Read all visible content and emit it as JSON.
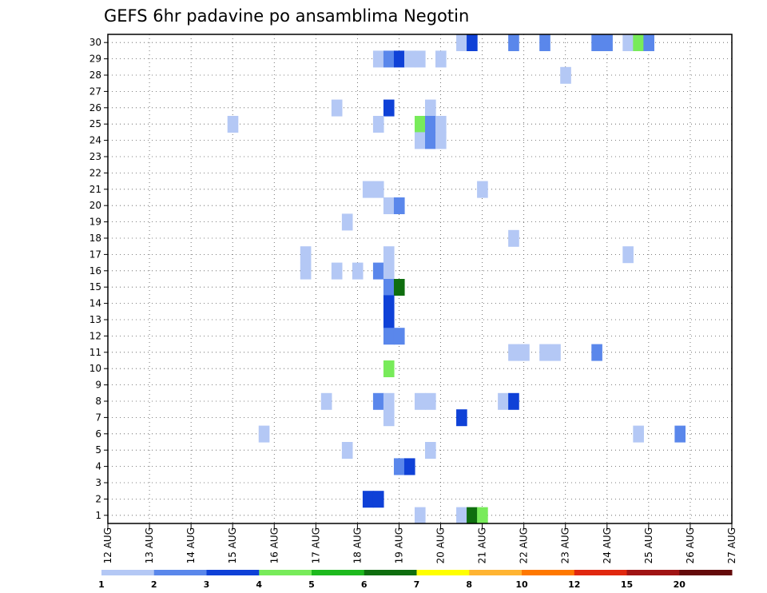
{
  "chart_data": {
    "type": "heatmap",
    "title": "GEFS 6hr padavine po ansamblima Negotin",
    "xlabel": "",
    "ylabel": "",
    "y_ticks": [
      1,
      2,
      3,
      4,
      5,
      6,
      7,
      8,
      9,
      10,
      11,
      12,
      13,
      14,
      15,
      16,
      17,
      18,
      19,
      20,
      21,
      22,
      23,
      24,
      25,
      26,
      27,
      28,
      29,
      30
    ],
    "x_ticks": [
      "12 AUG",
      "13 AUG",
      "14 AUG",
      "15 AUG",
      "16 AUG",
      "17 AUG",
      "18 AUG",
      "19 AUG",
      "20 AUG",
      "21 AUG",
      "22 AUG",
      "23 AUG",
      "24 AUG",
      "25 AUG",
      "26 AUG",
      "27 AUG"
    ],
    "x_range_days": [
      12,
      27
    ],
    "y_range": [
      0.5,
      30.5
    ],
    "step_hours": 6,
    "grid": true,
    "colorbar": {
      "labels": [
        "1",
        "2",
        "3",
        "4",
        "5",
        "6",
        "7",
        "8",
        "10",
        "12",
        "15",
        "20"
      ],
      "colors": [
        "#b4c8f5",
        "#5a87eb",
        "#0f41d7",
        "#78eb5a",
        "#1eb91e",
        "#0f6e0f",
        "#ffff00",
        "#ffb432",
        "#ff7800",
        "#e1280f",
        "#a01414",
        "#640a0a"
      ]
    },
    "cells": [
      {
        "day": 20.5,
        "member": 30,
        "level": 1
      },
      {
        "day": 20.75,
        "member": 30,
        "level": 3
      },
      {
        "day": 21.75,
        "member": 30,
        "level": 2
      },
      {
        "day": 22.5,
        "member": 30,
        "level": 2
      },
      {
        "day": 23.75,
        "member": 30,
        "level": 2
      },
      {
        "day": 24.0,
        "member": 30,
        "level": 2
      },
      {
        "day": 24.5,
        "member": 30,
        "level": 1
      },
      {
        "day": 24.75,
        "member": 30,
        "level": 4
      },
      {
        "day": 25.0,
        "member": 30,
        "level": 2
      },
      {
        "day": 18.5,
        "member": 29,
        "level": 1
      },
      {
        "day": 18.75,
        "member": 29,
        "level": 2
      },
      {
        "day": 19.0,
        "member": 29,
        "level": 3
      },
      {
        "day": 19.25,
        "member": 29,
        "level": 1
      },
      {
        "day": 19.5,
        "member": 29,
        "level": 1
      },
      {
        "day": 20.0,
        "member": 29,
        "level": 1
      },
      {
        "day": 23.0,
        "member": 28,
        "level": 1
      },
      {
        "day": 17.5,
        "member": 26,
        "level": 1
      },
      {
        "day": 18.75,
        "member": 26,
        "level": 3
      },
      {
        "day": 19.75,
        "member": 26,
        "level": 1
      },
      {
        "day": 15.0,
        "member": 25,
        "level": 1
      },
      {
        "day": 18.5,
        "member": 25,
        "level": 1
      },
      {
        "day": 19.5,
        "member": 25,
        "level": 4
      },
      {
        "day": 19.75,
        "member": 25,
        "level": 2
      },
      {
        "day": 20.0,
        "member": 25,
        "level": 1
      },
      {
        "day": 19.5,
        "member": 24,
        "level": 1
      },
      {
        "day": 19.75,
        "member": 24,
        "level": 2
      },
      {
        "day": 20.0,
        "member": 24,
        "level": 1
      },
      {
        "day": 18.25,
        "member": 21,
        "level": 1
      },
      {
        "day": 18.5,
        "member": 21,
        "level": 1
      },
      {
        "day": 21.0,
        "member": 21,
        "level": 1
      },
      {
        "day": 18.75,
        "member": 20,
        "level": 1
      },
      {
        "day": 19.0,
        "member": 20,
        "level": 2
      },
      {
        "day": 17.75,
        "member": 19,
        "level": 1
      },
      {
        "day": 21.75,
        "member": 18,
        "level": 1
      },
      {
        "day": 16.75,
        "member": 17,
        "level": 1
      },
      {
        "day": 18.75,
        "member": 17,
        "level": 1
      },
      {
        "day": 24.5,
        "member": 17,
        "level": 1
      },
      {
        "day": 16.75,
        "member": 16,
        "level": 1
      },
      {
        "day": 17.5,
        "member": 16,
        "level": 1
      },
      {
        "day": 18.0,
        "member": 16,
        "level": 1
      },
      {
        "day": 18.5,
        "member": 16,
        "level": 2
      },
      {
        "day": 18.75,
        "member": 16,
        "level": 1
      },
      {
        "day": 18.75,
        "member": 15,
        "level": 2
      },
      {
        "day": 19.0,
        "member": 15,
        "level": 6
      },
      {
        "day": 18.75,
        "member": 14,
        "level": 3
      },
      {
        "day": 18.75,
        "member": 13,
        "level": 3
      },
      {
        "day": 18.75,
        "member": 12,
        "level": 2
      },
      {
        "day": 19.0,
        "member": 12,
        "level": 2
      },
      {
        "day": 21.75,
        "member": 11,
        "level": 1
      },
      {
        "day": 22.0,
        "member": 11,
        "level": 1
      },
      {
        "day": 22.5,
        "member": 11,
        "level": 1
      },
      {
        "day": 22.75,
        "member": 11,
        "level": 1
      },
      {
        "day": 23.75,
        "member": 11,
        "level": 2
      },
      {
        "day": 18.75,
        "member": 10,
        "level": 4
      },
      {
        "day": 17.25,
        "member": 8,
        "level": 1
      },
      {
        "day": 18.5,
        "member": 8,
        "level": 2
      },
      {
        "day": 18.75,
        "member": 8,
        "level": 1
      },
      {
        "day": 19.5,
        "member": 8,
        "level": 1
      },
      {
        "day": 19.75,
        "member": 8,
        "level": 1
      },
      {
        "day": 21.5,
        "member": 8,
        "level": 1
      },
      {
        "day": 21.75,
        "member": 8,
        "level": 3
      },
      {
        "day": 18.75,
        "member": 7,
        "level": 1
      },
      {
        "day": 20.5,
        "member": 7,
        "level": 3
      },
      {
        "day": 15.75,
        "member": 6,
        "level": 1
      },
      {
        "day": 24.75,
        "member": 6,
        "level": 1
      },
      {
        "day": 25.75,
        "member": 6,
        "level": 2
      },
      {
        "day": 17.75,
        "member": 5,
        "level": 1
      },
      {
        "day": 19.75,
        "member": 5,
        "level": 1
      },
      {
        "day": 19.0,
        "member": 4,
        "level": 2
      },
      {
        "day": 19.25,
        "member": 4,
        "level": 3
      },
      {
        "day": 18.25,
        "member": 2,
        "level": 3
      },
      {
        "day": 18.5,
        "member": 2,
        "level": 3
      },
      {
        "day": 19.5,
        "member": 1,
        "level": 1
      },
      {
        "day": 20.5,
        "member": 1,
        "level": 1
      },
      {
        "day": 20.75,
        "member": 1,
        "level": 6
      },
      {
        "day": 21.0,
        "member": 1,
        "level": 4
      }
    ]
  }
}
